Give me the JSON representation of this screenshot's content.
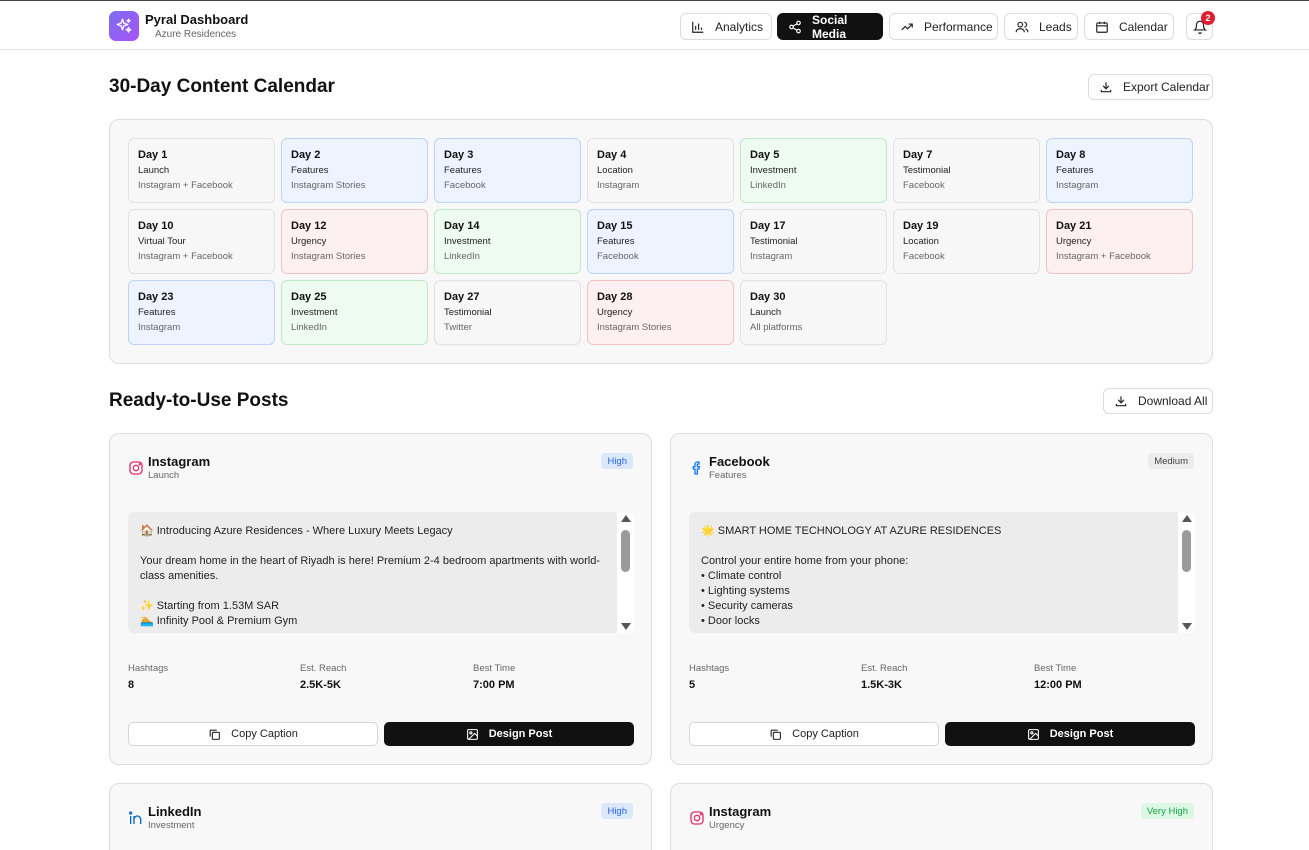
{
  "header": {
    "app_title": "Pyral Dashboard",
    "subtitle": "Azure Residences",
    "nav": [
      {
        "label": "Analytics",
        "icon": "bar-chart-icon"
      },
      {
        "label": "Social Media",
        "icon": "share-icon",
        "active": true
      },
      {
        "label": "Performance",
        "icon": "trending-up-icon"
      },
      {
        "label": "Leads",
        "icon": "users-icon"
      },
      {
        "label": "Calendar",
        "icon": "calendar-icon"
      }
    ],
    "notification_count": "2"
  },
  "calendar": {
    "title": "30-Day Content Calendar",
    "export_label": "Export Calendar",
    "days": [
      {
        "title": "Day 1",
        "theme": "Launch",
        "platform": "Instagram + Facebook",
        "color": "gray"
      },
      {
        "title": "Day 2",
        "theme": "Features",
        "platform": "Instagram Stories",
        "color": "blue"
      },
      {
        "title": "Day 3",
        "theme": "Features",
        "platform": "Facebook",
        "color": "blue"
      },
      {
        "title": "Day 4",
        "theme": "Location",
        "platform": "Instagram",
        "color": "gray"
      },
      {
        "title": "Day 5",
        "theme": "Investment",
        "platform": "LinkedIn",
        "color": "green"
      },
      {
        "title": "Day 7",
        "theme": "Testimonial",
        "platform": "Facebook",
        "color": "gray"
      },
      {
        "title": "Day 8",
        "theme": "Features",
        "platform": "Instagram",
        "color": "blue"
      },
      {
        "title": "Day 10",
        "theme": "Virtual Tour",
        "platform": "Instagram + Facebook",
        "color": "gray"
      },
      {
        "title": "Day 12",
        "theme": "Urgency",
        "platform": "Instagram Stories",
        "color": "red"
      },
      {
        "title": "Day 14",
        "theme": "Investment",
        "platform": "LinkedIn",
        "color": "green"
      },
      {
        "title": "Day 15",
        "theme": "Features",
        "platform": "Facebook",
        "color": "blue"
      },
      {
        "title": "Day 17",
        "theme": "Testimonial",
        "platform": "Instagram",
        "color": "gray"
      },
      {
        "title": "Day 19",
        "theme": "Location",
        "platform": "Facebook",
        "color": "gray"
      },
      {
        "title": "Day 21",
        "theme": "Urgency",
        "platform": "Instagram + Facebook",
        "color": "red"
      },
      {
        "title": "Day 23",
        "theme": "Features",
        "platform": "Instagram",
        "color": "blue"
      },
      {
        "title": "Day 25",
        "theme": "Investment",
        "platform": "LinkedIn",
        "color": "green"
      },
      {
        "title": "Day 27",
        "theme": "Testimonial",
        "platform": "Twitter",
        "color": "gray"
      },
      {
        "title": "Day 28",
        "theme": "Urgency",
        "platform": "Instagram Stories",
        "color": "red"
      },
      {
        "title": "Day 30",
        "theme": "Launch",
        "platform": "All platforms",
        "color": "gray"
      }
    ]
  },
  "posts_section": {
    "title": "Ready-to-Use Posts",
    "download_label": "Download All",
    "stat_labels": {
      "hashtags": "Hashtags",
      "reach": "Est. Reach",
      "best_time": "Best Time"
    },
    "copy_label": "Copy Caption",
    "design_label": "Design Post",
    "posts": [
      {
        "platform": "Instagram",
        "icon": "instagram-icon",
        "theme": "Launch",
        "priority": "High",
        "caption": "🏠 Introducing Azure Residences - Where Luxury Meets Legacy\n\nYour dream home in the heart of Riyadh is here! Premium 2-4 bedroom apartments with world-class amenities.\n\n✨ Starting from 1.53M SAR\n🏊 Infinity Pool & Premium Gym",
        "hashtags": "8",
        "reach": "2.5K-5K",
        "best_time": "7:00 PM"
      },
      {
        "platform": "Facebook",
        "icon": "facebook-icon",
        "theme": "Features",
        "priority": "Medium",
        "caption": "🌟 SMART HOME TECHNOLOGY AT AZURE RESIDENCES\n\nControl your entire home from your phone:\n• Climate control\n• Lighting systems\n• Security cameras\n• Door locks",
        "hashtags": "5",
        "reach": "1.5K-3K",
        "best_time": "12:00 PM"
      },
      {
        "platform": "LinkedIn",
        "icon": "linkedin-icon",
        "theme": "Investment",
        "priority": "High"
      },
      {
        "platform": "Instagram",
        "icon": "instagram-icon",
        "theme": "Urgency",
        "priority": "Very High"
      }
    ]
  },
  "colors": {
    "accent": "#111111",
    "brand_gradient_start": "#7c6cf2",
    "brand_gradient_end": "#a855f7",
    "instagram": "#e1306c",
    "facebook": "#1877f2",
    "linkedin": "#0a66c2"
  }
}
